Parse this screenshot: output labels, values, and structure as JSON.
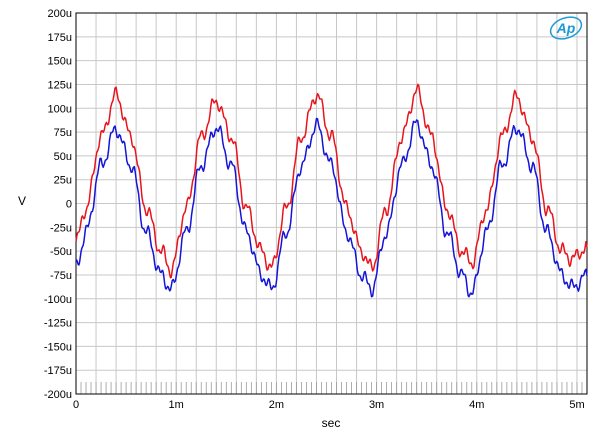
{
  "chart_data": {
    "type": "line",
    "xlabel": "sec",
    "ylabel": "V",
    "xlim": [
      0,
      0.0051
    ],
    "ylim": [
      -0.0002,
      0.0002
    ],
    "x_ticks": [
      {
        "value": 0,
        "label": "0"
      },
      {
        "value": 0.001,
        "label": "1m"
      },
      {
        "value": 0.002,
        "label": "2m"
      },
      {
        "value": 0.003,
        "label": "3m"
      },
      {
        "value": 0.004,
        "label": "4m"
      },
      {
        "value": 0.005,
        "label": "5m"
      }
    ],
    "y_ticks": [
      {
        "value": 0.0002,
        "label": "200u"
      },
      {
        "value": 0.000175,
        "label": "175u"
      },
      {
        "value": 0.00015,
        "label": "150u"
      },
      {
        "value": 0.000125,
        "label": "125u"
      },
      {
        "value": 0.0001,
        "label": "100u"
      },
      {
        "value": 7.5e-05,
        "label": "75u"
      },
      {
        "value": 5e-05,
        "label": "50u"
      },
      {
        "value": 2.5e-05,
        "label": "25u"
      },
      {
        "value": 0,
        "label": "0"
      },
      {
        "value": -2.5e-05,
        "label": "-25u"
      },
      {
        "value": -5e-05,
        "label": "-50u"
      },
      {
        "value": -7.5e-05,
        "label": "-75u"
      },
      {
        "value": -0.0001,
        "label": "-100u"
      },
      {
        "value": -0.000125,
        "label": "-125u"
      },
      {
        "value": -0.00015,
        "label": "-150u"
      },
      {
        "value": -0.000175,
        "label": "-175u"
      },
      {
        "value": -0.0002,
        "label": "-200u"
      }
    ],
    "grid": true,
    "series": [
      {
        "color": "#e8141c",
        "x": [
          0,
          0.0001,
          0.00025,
          0.0004,
          0.00055,
          0.0007,
          0.00085,
          0.00095,
          0.0011,
          0.00125,
          0.0014,
          0.00155,
          0.0017,
          0.00185,
          0.00195,
          0.0021,
          0.00225,
          0.0024,
          0.00255,
          0.0027,
          0.00285,
          0.00295,
          0.0031,
          0.00325,
          0.0034,
          0.00355,
          0.0037,
          0.00385,
          0.00395,
          0.0041,
          0.00425,
          0.0044,
          0.00455,
          0.0047,
          0.00485,
          0.00495,
          0.0051
        ],
        "y": [
          -4e-05,
          -5e-06,
          7e-05,
          0.000114,
          7e-05,
          -5e-06,
          -5e-05,
          -7e-05,
          -5e-06,
          7e-05,
          0.000108,
          7e-05,
          -5e-06,
          -5e-05,
          -6.8e-05,
          -5e-06,
          7e-05,
          0.000114,
          7e-05,
          -5e-06,
          -5e-05,
          -6.8e-05,
          -5e-06,
          7e-05,
          0.000118,
          7e-05,
          -5e-06,
          -5e-05,
          -6.2e-05,
          -5e-06,
          7e-05,
          0.000112,
          7e-05,
          -5e-06,
          -5e-05,
          -5.8e-05,
          -4.6e-05
        ]
      },
      {
        "color": "#1414d8",
        "x": [
          0,
          0.0001,
          0.00025,
          0.0004,
          0.00055,
          0.0007,
          0.00085,
          0.00095,
          0.0011,
          0.00125,
          0.0014,
          0.00155,
          0.0017,
          0.00185,
          0.00195,
          0.0021,
          0.00225,
          0.0024,
          0.00255,
          0.0027,
          0.00285,
          0.00295,
          0.0031,
          0.00325,
          0.0034,
          0.00355,
          0.0037,
          0.00385,
          0.00395,
          0.0041,
          0.00425,
          0.0044,
          0.00455,
          0.0047,
          0.00485,
          0.00495,
          0.0051
        ],
        "y": [
          -6.8e-05,
          -3e-05,
          4e-05,
          7.8e-05,
          4e-05,
          -3e-05,
          -7.5e-05,
          -9e-05,
          -3e-05,
          4e-05,
          8e-05,
          4e-05,
          -3e-05,
          -7.5e-05,
          -9e-05,
          -3e-05,
          4e-05,
          8.2e-05,
          4e-05,
          -3e-05,
          -7.5e-05,
          -9e-05,
          -3e-05,
          4e-05,
          8.4e-05,
          4e-05,
          -3e-05,
          -7.5e-05,
          -9.4e-05,
          -3e-05,
          4e-05,
          8e-05,
          4e-05,
          -3e-05,
          -7.5e-05,
          -8.8e-05,
          -7.6e-05
        ]
      }
    ]
  },
  "logo": {
    "text": "Ap",
    "color": "#1a9ad6"
  }
}
